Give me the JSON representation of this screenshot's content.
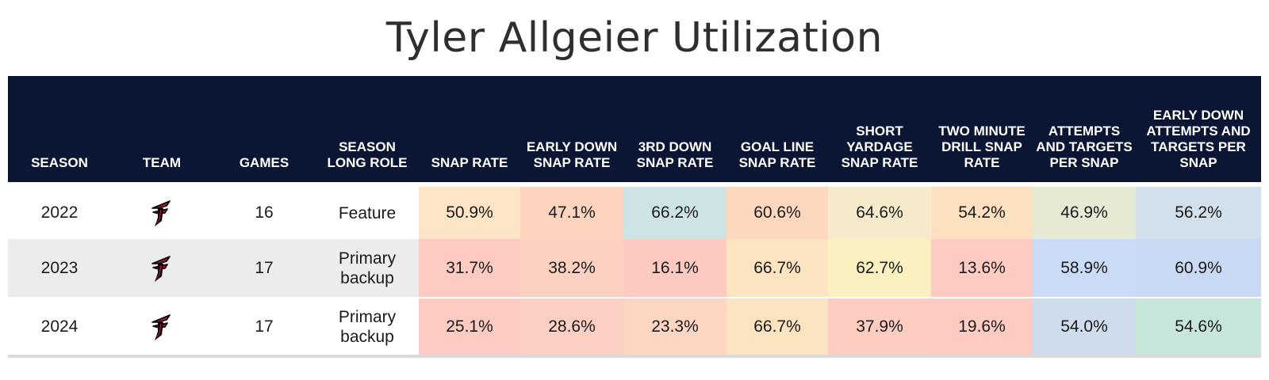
{
  "title": "Tyler Allgeier Utilization",
  "colors": {
    "header_bg": "#0b1534",
    "falcons_red": "#a71930",
    "falcons_black": "#000000"
  },
  "chart_data": {
    "type": "table",
    "title": "Tyler Allgeier Utilization",
    "columns": [
      "SEASON",
      "TEAM",
      "GAMES",
      "SEASON LONG ROLE",
      "SNAP RATE",
      "EARLY DOWN SNAP RATE",
      "3RD DOWN SNAP RATE",
      "GOAL LINE SNAP RATE",
      "SHORT YARDAGE SNAP RATE",
      "TWO MINUTE DRILL SNAP RATE",
      "ATTEMPTS AND TARGETS PER SNAP",
      "EARLY DOWN ATTEMPTS AND TARGETS PER SNAP"
    ],
    "rows": [
      {
        "season": "2022",
        "team": "falcons-logo-icon",
        "games": "16",
        "role": "Feature",
        "values": [
          "50.9%",
          "47.1%",
          "66.2%",
          "60.6%",
          "64.6%",
          "54.2%",
          "46.9%",
          "56.2%"
        ],
        "colors": [
          "#fde5c6",
          "#fdd5bf",
          "#cde3e6",
          "#fdd7be",
          "#f5ebcb",
          "#fde0c0",
          "#e6ead5",
          "#d2e0eb"
        ]
      },
      {
        "season": "2023",
        "team": "falcons-logo-icon",
        "games": "17",
        "role": "Primary backup",
        "values": [
          "31.7%",
          "38.2%",
          "16.1%",
          "66.7%",
          "62.7%",
          "13.6%",
          "58.9%",
          "60.9%"
        ],
        "colors": [
          "#fdcbc2",
          "#fdd1c2",
          "#fdcac2",
          "#fde4c0",
          "#fbf1c0",
          "#fdcbc2",
          "#c9dbf5",
          "#c9d9f4"
        ]
      },
      {
        "season": "2024",
        "team": "falcons-logo-icon",
        "games": "17",
        "role": "Primary backup",
        "values": [
          "25.1%",
          "28.6%",
          "23.3%",
          "66.7%",
          "37.9%",
          "19.6%",
          "54.0%",
          "54.6%"
        ],
        "colors": [
          "#fdcbc4",
          "#fdcfc3",
          "#fdd6c2",
          "#fde4c0",
          "#fdcdc2",
          "#fdcbc2",
          "#cfdcee",
          "#c6e6da"
        ]
      }
    ]
  }
}
